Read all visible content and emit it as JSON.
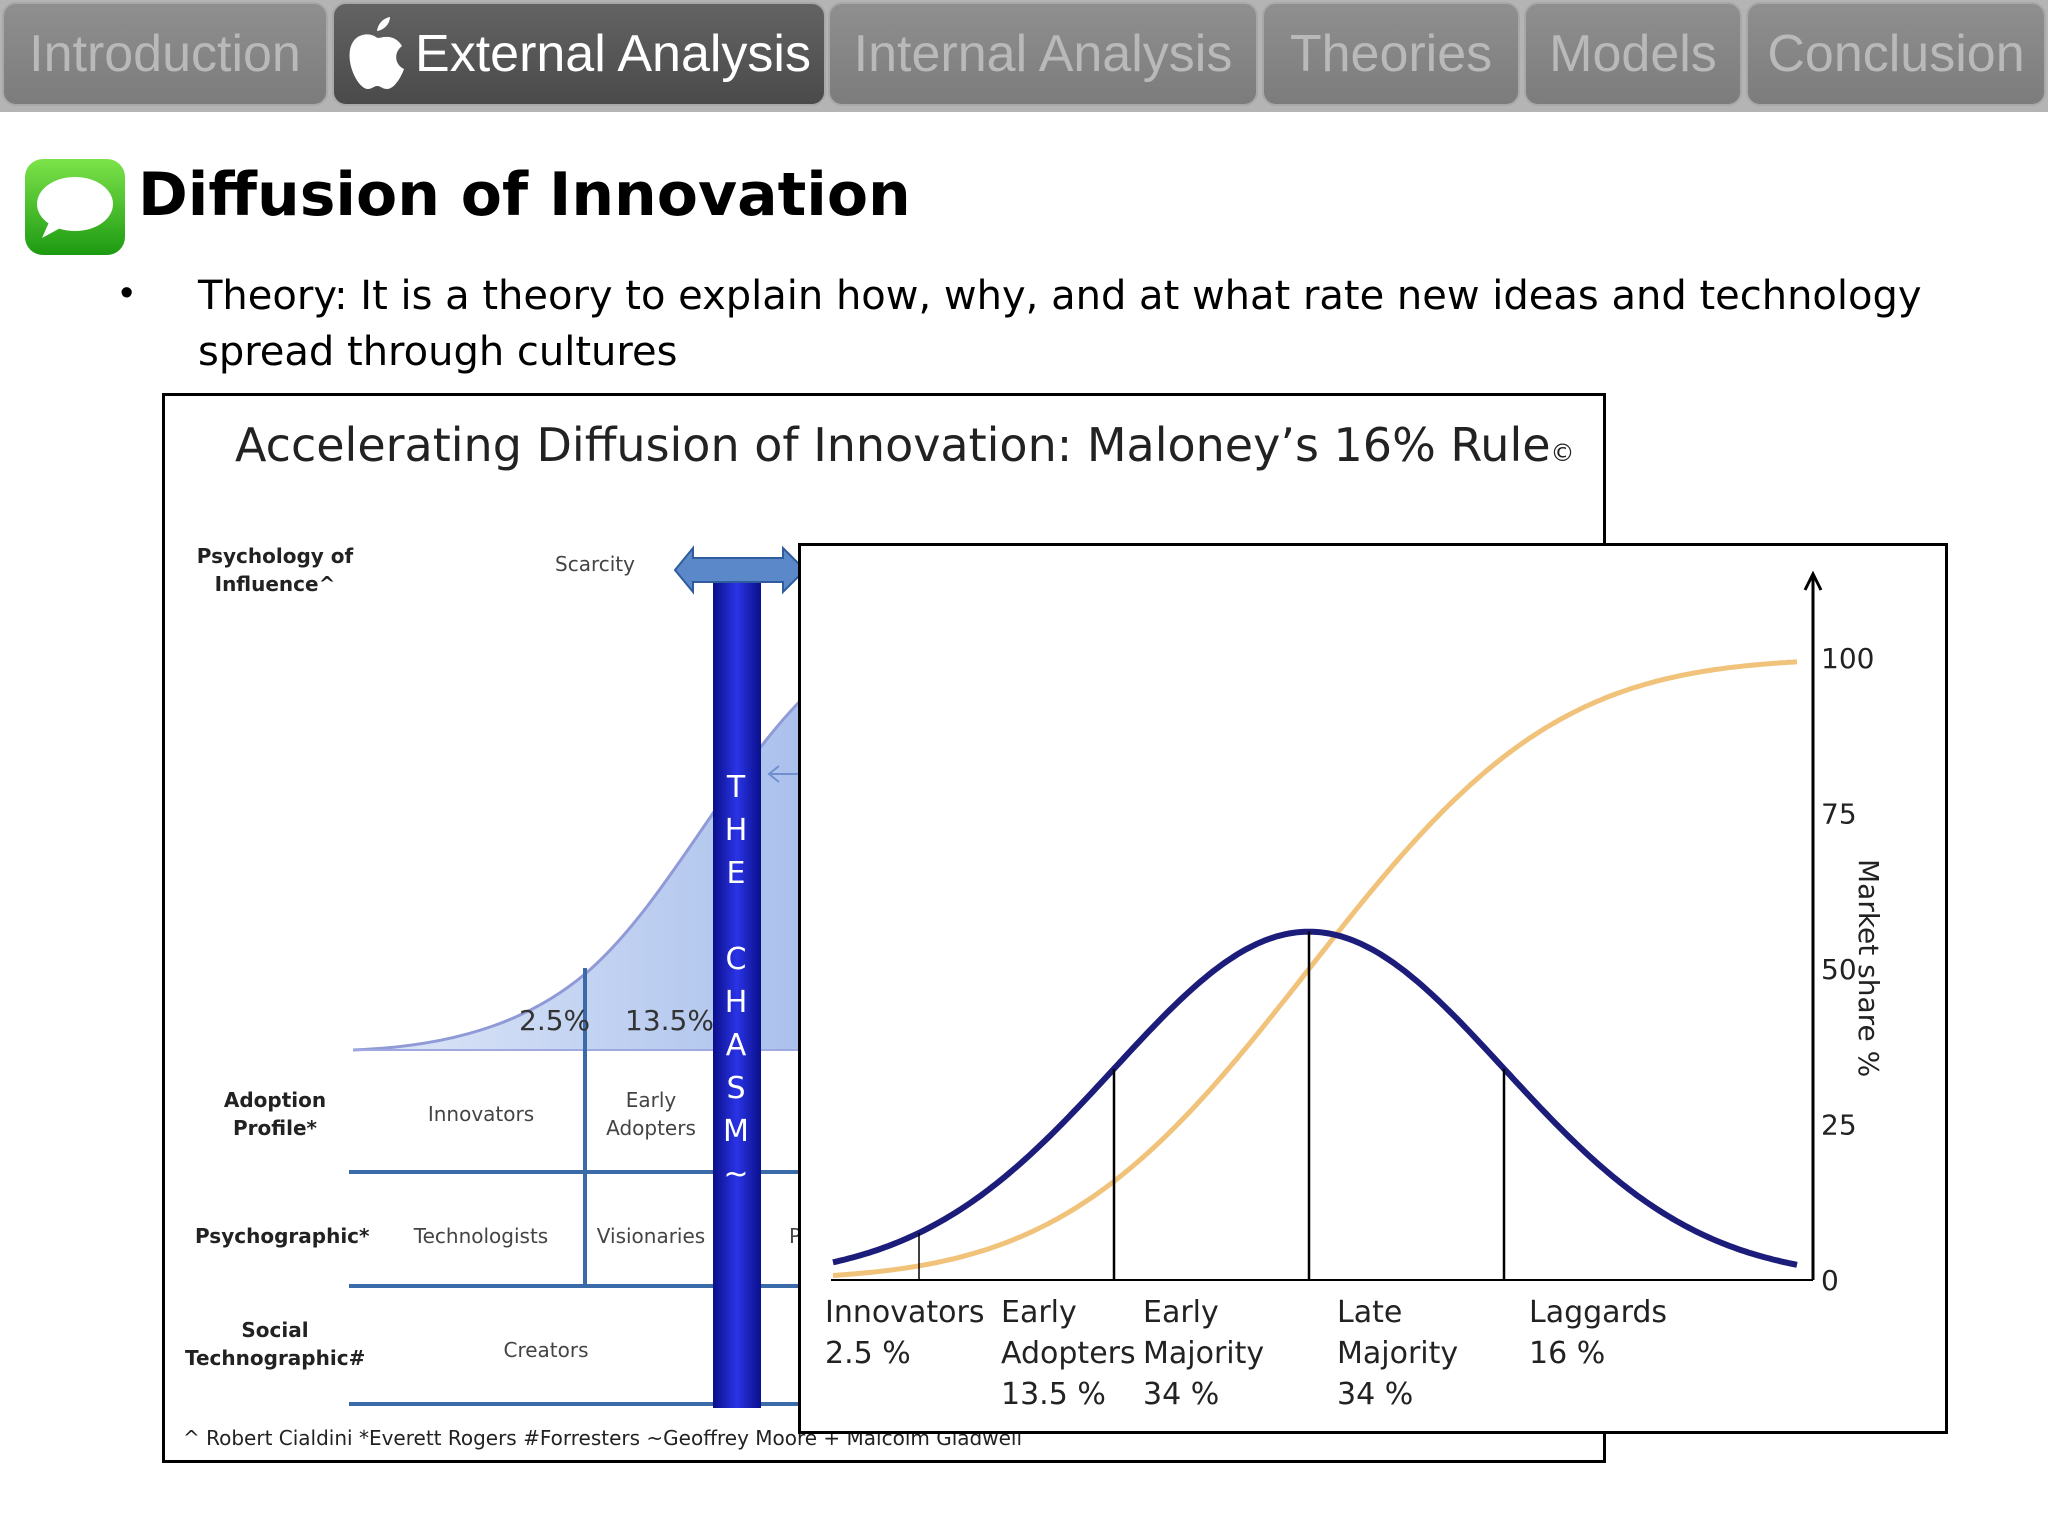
{
  "nav": {
    "tabs": [
      {
        "label": "Introduction"
      },
      {
        "label": "External Analysis",
        "icon": "apple-icon",
        "active": true
      },
      {
        "label": "Internal Analysis"
      },
      {
        "label": "Theories"
      },
      {
        "label": "Models"
      },
      {
        "label": "Conclusion"
      }
    ]
  },
  "slide": {
    "title_icon": "messages-icon",
    "title": "Diffusion of Innovation",
    "theory": "Theory: It is a theory to explain how, why, and at what rate new ideas and technology spread through cultures"
  },
  "back_diagram": {
    "title": "Accelerating Diffusion of Innovation: Maloney’s 16% Rule",
    "copyright": "©",
    "rows": {
      "psychology": "Psychology of Influence^",
      "adoption": "Adoption Profile*",
      "psychographic": "Psychographic*",
      "social": "Social Technographic#"
    },
    "scarcity": "Scarcity",
    "pct_innovators": "2.5%",
    "pct_early": "13.5%",
    "adoption_cells": {
      "innovators": "Innovators",
      "early": "Early Adopters"
    },
    "psychographic_cells": {
      "technologists": "Technologists",
      "visionaries": "Visionaries",
      "partial": "P"
    },
    "social_cells": {
      "creators": "Creators"
    },
    "chasm": "THE CHASM~",
    "footnote": "^ Robert Cialdini *Everett Rogers #Forresters ~Geoffrey Moore + Malcolm Gladwell"
  },
  "chart_data": {
    "type": "line",
    "ylabel": "Market share %",
    "ylim": [
      0,
      100
    ],
    "yticks": [
      "0",
      "25",
      "50",
      "75",
      "100"
    ],
    "segments": [
      {
        "name": "Innovators",
        "share": "2.5 %",
        "lines": [
          "Innovators",
          "2.5 %"
        ]
      },
      {
        "name": "Early Adopters",
        "share": "13.5 %",
        "lines": [
          "Early",
          "Adopters",
          "13.5 %"
        ]
      },
      {
        "name": "Early Majority",
        "share": "34 %",
        "lines": [
          "Early",
          "Majority",
          "34 %"
        ]
      },
      {
        "name": "Late Majority",
        "share": "34 %",
        "lines": [
          "Late",
          "Majority",
          "34 %"
        ]
      },
      {
        "name": "Laggards",
        "share": "16 %",
        "lines": [
          "Laggards",
          "16 %"
        ]
      }
    ],
    "series": [
      {
        "kind": "adoption curve (bell)",
        "color": "#1c1c7a"
      },
      {
        "kind": "cumulative market share (S-curve)",
        "color": "#f0c27a"
      }
    ]
  },
  "colors": {
    "tab_active": "#4f4f4f",
    "tab_inactive": "#8a8a8a",
    "bell": "#1c1c7a",
    "s_curve": "#f0c27a",
    "chasm": "#1a22c8",
    "diagram_lines": "#3a6aa8"
  }
}
